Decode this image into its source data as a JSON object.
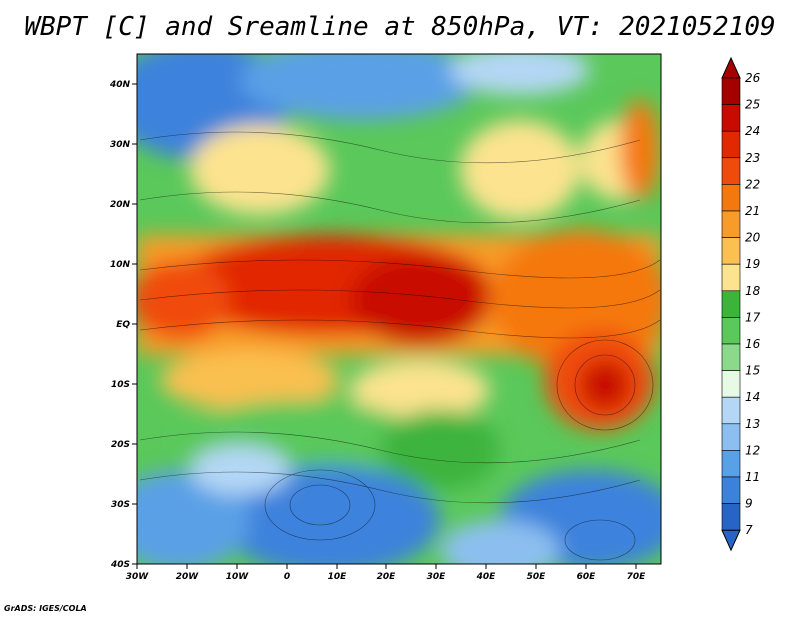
{
  "title": "WBPT [C] and Sreamline at 850hPa, VT: 2021052109",
  "credit": "GrADS: IGES/COLA",
  "map": {
    "lon_labels": [
      "30W",
      "20W",
      "10W",
      "0",
      "10E",
      "20E",
      "30E",
      "40E",
      "50E",
      "60E",
      "70E"
    ],
    "lat_labels": [
      "40N",
      "30N",
      "20N",
      "10N",
      "EQ",
      "10S",
      "20S",
      "30S",
      "40S"
    ]
  },
  "colorbar": {
    "labels": [
      "26",
      "25",
      "24",
      "23",
      "22",
      "21",
      "20",
      "19",
      "18",
      "17",
      "16",
      "15",
      "14",
      "13",
      "12",
      "11",
      "9",
      "7"
    ],
    "colors": [
      "#a50000",
      "#c80a00",
      "#e12800",
      "#f04b0a",
      "#f5780f",
      "#f89b28",
      "#fac050",
      "#fce38f",
      "#3cb43c",
      "#5ac85a",
      "#8cd98c",
      "#e6fae6",
      "#b4d7f5",
      "#8cbff0",
      "#5aa0e6",
      "#3c82dc",
      "#2864c8"
    ],
    "top_color": "#a50000",
    "bottom_color": "#2864c8"
  }
}
